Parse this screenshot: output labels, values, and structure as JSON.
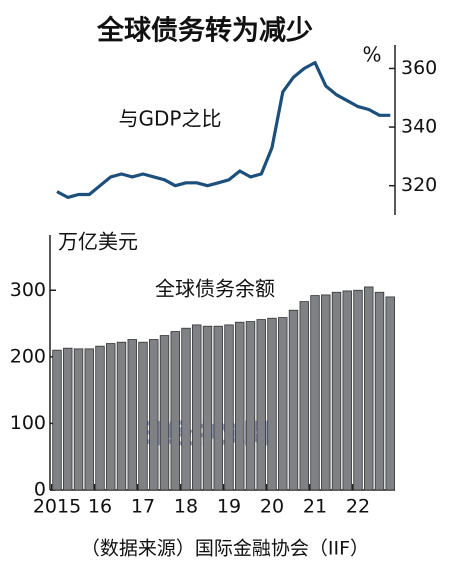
{
  "title": "全球债务转为减少",
  "chart_data": [
    {
      "type": "line",
      "annotation": "与GDP之比",
      "unit": "%",
      "color": "#1d4f7c",
      "y_axis_side": "right",
      "values": [
        318,
        316,
        317,
        317,
        320,
        323,
        324,
        323,
        324,
        323,
        322,
        320,
        321,
        321,
        320,
        321,
        322,
        325,
        323,
        324,
        333,
        352,
        357,
        360,
        362,
        354,
        351,
        349,
        347,
        346,
        344,
        344
      ],
      "ylim": [
        310,
        368
      ],
      "yticks": [
        320,
        340,
        360
      ]
    },
    {
      "type": "bar",
      "ylabel": "万亿美元",
      "annotation": "全球债务余额",
      "color": "#808185",
      "y_axis_side": "left",
      "categories": [
        "2015",
        null,
        null,
        null,
        "16",
        null,
        null,
        null,
        "17",
        null,
        null,
        null,
        "18",
        null,
        null,
        null,
        "19",
        null,
        null,
        null,
        "20",
        null,
        null,
        null,
        "21",
        null,
        null,
        null,
        "22",
        null,
        null,
        null
      ],
      "values": [
        210,
        213,
        212,
        212,
        216,
        220,
        222,
        226,
        222,
        226,
        232,
        238,
        243,
        248,
        246,
        246,
        248,
        252,
        253,
        256,
        258,
        259,
        270,
        283,
        292,
        293,
        297,
        299,
        300,
        305,
        297,
        290
      ],
      "ylim": [
        0,
        383
      ],
      "yticks": [
        0,
        100,
        200,
        300
      ],
      "source": "（数据来源）国际金融协会（IIF）"
    }
  ],
  "watermark": "日经中文网"
}
